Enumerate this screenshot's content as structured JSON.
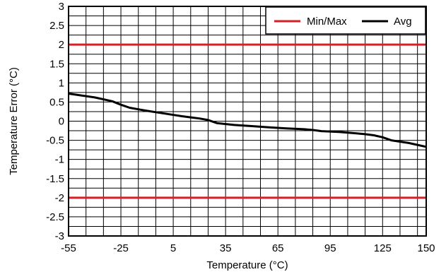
{
  "chart_data": {
    "type": "line",
    "title": "",
    "xlabel": "Temperature (°C)",
    "ylabel": "Temperature Error (°C)",
    "xlim": [
      -55,
      150
    ],
    "ylim": [
      -3,
      3
    ],
    "x_ticks": [
      -55,
      -25,
      5,
      35,
      65,
      95,
      125,
      150
    ],
    "y_ticks": [
      3,
      2.5,
      2,
      1.5,
      1,
      0.5,
      0,
      -0.5,
      -1,
      -1.5,
      -2,
      -2.5,
      -3
    ],
    "x_minor_step": 10,
    "y_minor_step": 0.25,
    "grid": true,
    "legend_position": "top-right",
    "series": [
      {
        "name": "Min/Max",
        "color": "#d42027",
        "role": "limits",
        "values": [
          2,
          -2
        ]
      },
      {
        "name": "Avg",
        "color": "#000000",
        "role": "curve",
        "x": [
          -55,
          -40,
          -30,
          -25,
          -20,
          -15,
          -10,
          0,
          10,
          15,
          20,
          25,
          30,
          40,
          50,
          60,
          70,
          80,
          85,
          90,
          100,
          110,
          115,
          120,
          125,
          130,
          140,
          145,
          150
        ],
        "y": [
          0.72,
          0.62,
          0.52,
          0.43,
          0.35,
          0.31,
          0.27,
          0.2,
          0.13,
          0.1,
          0.07,
          0.03,
          -0.05,
          -0.1,
          -0.13,
          -0.16,
          -0.19,
          -0.21,
          -0.23,
          -0.26,
          -0.28,
          -0.32,
          -0.34,
          -0.37,
          -0.42,
          -0.5,
          -0.57,
          -0.62,
          -0.67
        ]
      }
    ]
  }
}
